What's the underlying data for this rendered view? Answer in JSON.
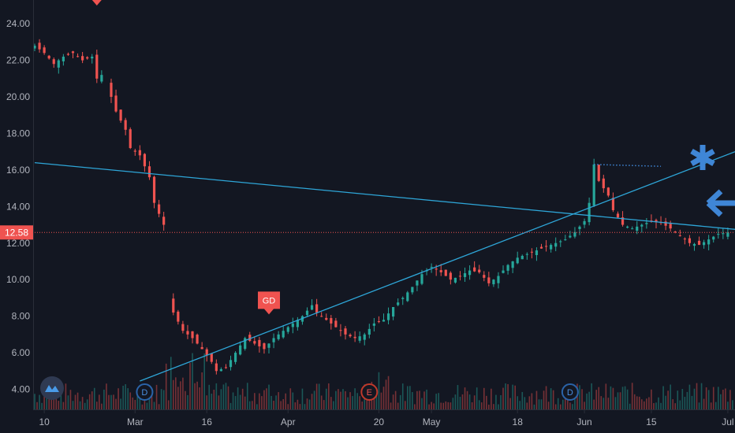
{
  "chart_data": {
    "type": "candlestick",
    "y_ticks": [
      "24.00",
      "22.00",
      "20.00",
      "18.00",
      "16.00",
      "14.00",
      "12.00",
      "10.00",
      "8.00",
      "6.00",
      "4.00"
    ],
    "y_range": [
      2.9,
      25.3
    ],
    "x_ticks": [
      {
        "label": "10",
        "day": 2
      },
      {
        "label": "Mar",
        "day": 21
      },
      {
        "label": "16",
        "day": 36
      },
      {
        "label": "Apr",
        "day": 53
      },
      {
        "label": "20",
        "day": 72
      },
      {
        "label": "May",
        "day": 83
      },
      {
        "label": "18",
        "day": 101
      },
      {
        "label": "Jun",
        "day": 115
      },
      {
        "label": "15",
        "day": 129
      },
      {
        "label": "Jul",
        "day": 145
      }
    ],
    "x_domain": [
      0,
      146.5
    ],
    "last_price": {
      "label": "12.58",
      "value": 12.58
    },
    "price_path": [
      [
        0,
        22.8
      ],
      [
        2,
        22.4
      ],
      [
        4,
        21.8
      ],
      [
        6,
        22.2
      ],
      [
        8,
        22.4
      ],
      [
        10,
        22.0
      ],
      [
        12,
        22.2
      ],
      [
        13,
        21.0
      ],
      [
        14,
        21.2
      ],
      [
        16,
        20.0
      ],
      [
        17,
        19.2
      ],
      [
        19,
        18.2
      ],
      [
        20,
        17.2
      ],
      [
        22,
        16.8
      ],
      [
        24,
        15.6
      ],
      [
        25,
        14.2
      ],
      [
        27,
        13.0
      ],
      [
        28,
        9.0
      ],
      [
        29,
        8.2
      ],
      [
        31,
        7.2
      ],
      [
        33,
        6.8
      ],
      [
        35,
        6.2
      ],
      [
        37,
        5.5
      ],
      [
        38,
        5.0
      ],
      [
        40,
        5.2
      ],
      [
        42,
        6.0
      ],
      [
        44,
        6.8
      ],
      [
        46,
        6.5
      ],
      [
        48,
        6.2
      ],
      [
        50,
        6.8
      ],
      [
        52,
        7.2
      ],
      [
        54,
        7.6
      ],
      [
        56,
        8.0
      ],
      [
        58,
        8.6
      ],
      [
        59,
        8.2
      ],
      [
        61,
        7.8
      ],
      [
        63,
        7.4
      ],
      [
        65,
        7.0
      ],
      [
        67,
        6.8
      ],
      [
        69,
        7.0
      ],
      [
        71,
        7.6
      ],
      [
        73,
        7.8
      ],
      [
        75,
        8.5
      ],
      [
        77,
        9.0
      ],
      [
        79,
        9.6
      ],
      [
        81,
        10.3
      ],
      [
        83,
        10.7
      ],
      [
        85,
        10.4
      ],
      [
        87,
        10.0
      ],
      [
        89,
        10.2
      ],
      [
        91,
        10.5
      ],
      [
        93,
        10.4
      ],
      [
        95,
        9.8
      ],
      [
        97,
        10.2
      ],
      [
        99,
        10.8
      ],
      [
        101,
        11.2
      ],
      [
        103,
        11.4
      ],
      [
        105,
        11.6
      ],
      [
        107,
        11.8
      ],
      [
        109,
        12.0
      ],
      [
        111,
        12.2
      ],
      [
        113,
        12.6
      ],
      [
        115,
        13.2
      ],
      [
        116,
        14.2
      ],
      [
        117,
        16.3
      ],
      [
        118,
        15.4
      ],
      [
        119,
        15.0
      ],
      [
        120,
        14.6
      ],
      [
        121,
        13.8
      ],
      [
        123,
        13.0
      ],
      [
        125,
        12.8
      ],
      [
        127,
        13.0
      ],
      [
        129,
        13.2
      ],
      [
        131,
        13.1
      ],
      [
        133,
        12.8
      ],
      [
        135,
        12.4
      ],
      [
        137,
        12.0
      ],
      [
        139,
        11.9
      ],
      [
        141,
        12.2
      ],
      [
        143,
        12.5
      ],
      [
        145,
        12.58
      ]
    ],
    "gaps": [
      [
        14.5,
        15.5
      ],
      [
        27.5,
        28.5
      ]
    ],
    "trend_lines": [
      {
        "from": [
          0,
          16.4
        ],
        "to": [
          146.5,
          12.75
        ],
        "color": "#2ea6d8"
      },
      {
        "from": [
          22,
          4.45
        ],
        "to": [
          146.5,
          17.0
        ],
        "color": "#2ea6d8"
      }
    ],
    "dotted_segment": {
      "from": [
        117,
        16.3
      ],
      "to": [
        131,
        16.2
      ],
      "color": "#3f86d6"
    },
    "markers": [
      {
        "type": "flag",
        "label": "GD",
        "day": 49,
        "value": 8.4,
        "color": "#f05350"
      },
      {
        "type": "flag",
        "label": "",
        "day": 13,
        "value": 25.3,
        "color": "#f05350"
      }
    ],
    "event_badges": [
      {
        "label": "D",
        "day": 23,
        "color": "#2a63a8"
      },
      {
        "label": "E",
        "day": 70,
        "color": "#c0392b"
      },
      {
        "label": "D",
        "day": 112,
        "color": "#2a63a8"
      }
    ],
    "colors": {
      "background": "#131722",
      "up": "#26a69a",
      "down": "#ef5350",
      "price_line": "#ef5350",
      "axis_text": "#b2b5be",
      "annotation": "#3f86d6"
    },
    "icons": [
      "asterisk-icon",
      "arrow-left-icon",
      "cloud-logo-icon"
    ]
  }
}
